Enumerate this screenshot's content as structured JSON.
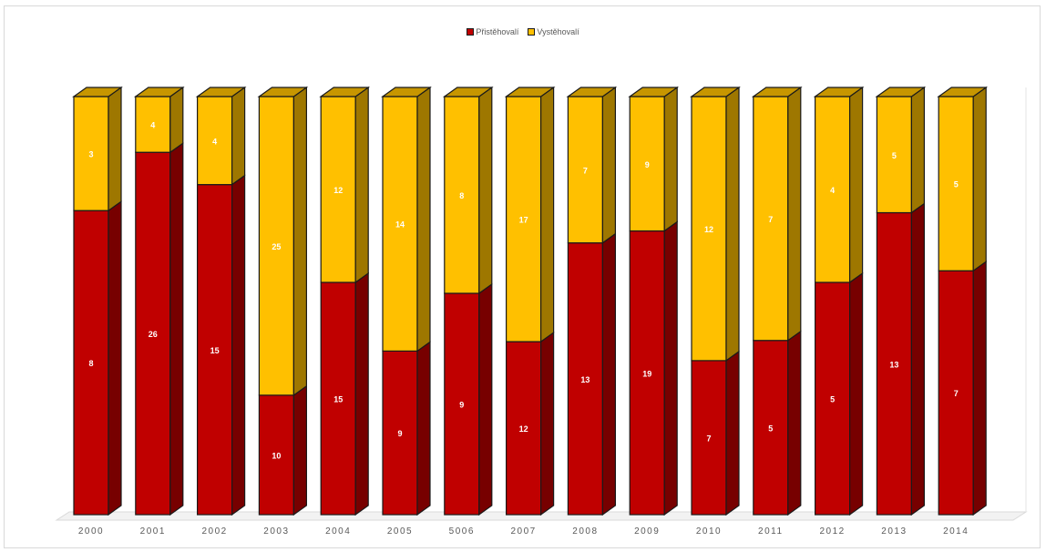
{
  "chart_data": {
    "type": "bar",
    "stacked": true,
    "style": "3d-stacked-column",
    "categories": [
      "2000",
      "2001",
      "2002",
      "2003",
      "2004",
      "2005",
      "5006",
      "2007",
      "2008",
      "2009",
      "2010",
      "2011",
      "2012",
      "2013",
      "2014"
    ],
    "series": [
      {
        "name": "Přistěhovalí",
        "color": "#c00000",
        "values": [
          8,
          26,
          15,
          10,
          15,
          9,
          9,
          12,
          13,
          19,
          7,
          5,
          5,
          13,
          7
        ]
      },
      {
        "name": "Vystěhovalí",
        "color": "#ffc000",
        "values": [
          3,
          4,
          4,
          25,
          12,
          14,
          8,
          17,
          7,
          9,
          12,
          7,
          4,
          5,
          5
        ]
      }
    ],
    "title": "",
    "xlabel": "",
    "ylabel": "",
    "legend_position": "top-center",
    "grid": false,
    "mode": "100% stacked"
  }
}
